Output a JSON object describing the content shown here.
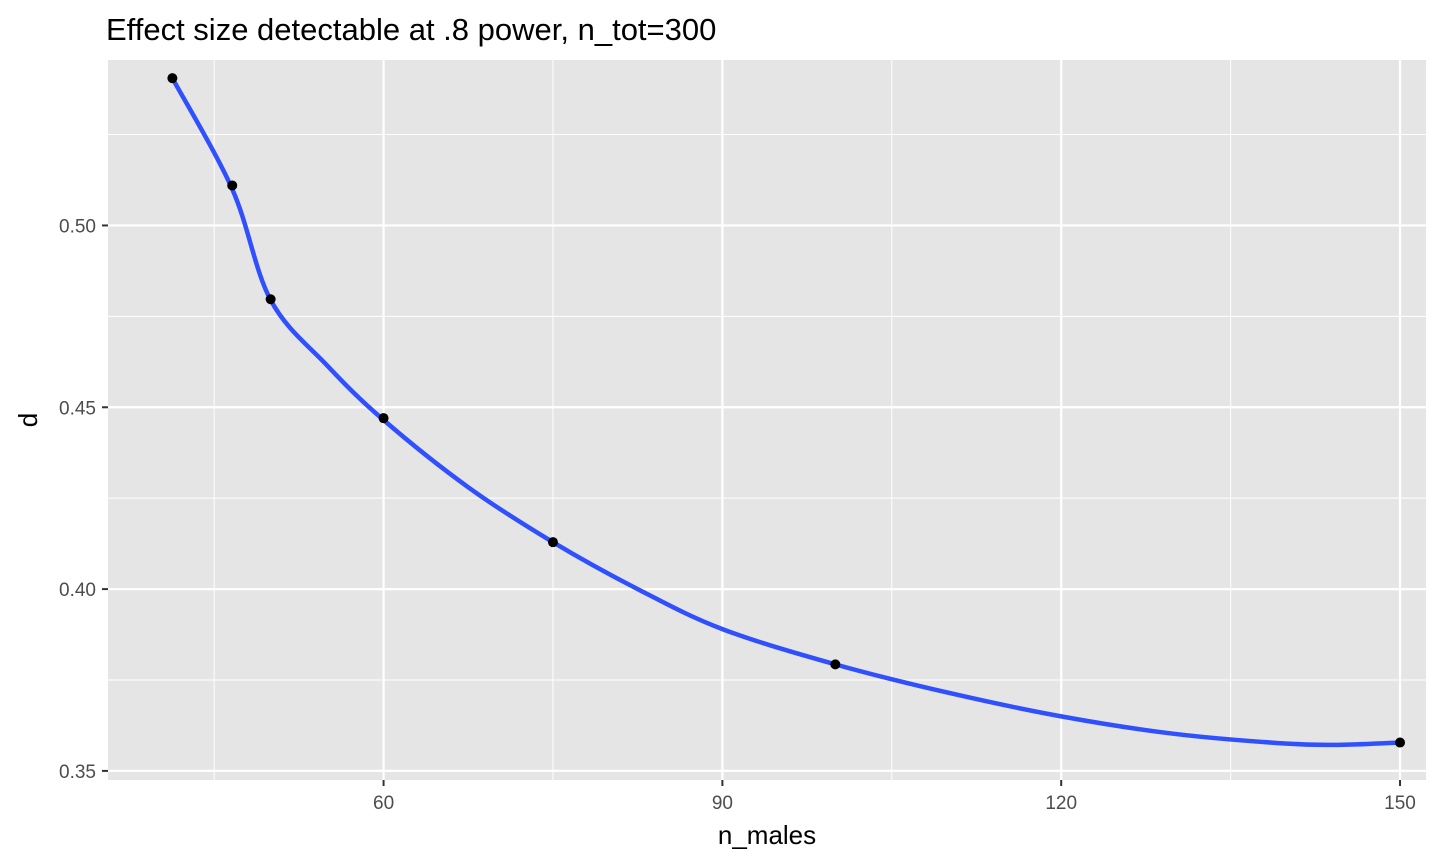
{
  "chart_data": {
    "type": "scatter",
    "title": "Effect size detectable at .8 power, n_tot=300",
    "xlabel": "n_males",
    "ylabel": "d",
    "xlim": [
      35.6,
      152.3
    ],
    "ylim": [
      0.3475,
      0.5455
    ],
    "x_ticks": [
      60,
      90,
      120,
      150
    ],
    "x_tick_labels": [
      "60",
      "90",
      "120",
      "150"
    ],
    "y_ticks": [
      0.35,
      0.4,
      0.45,
      0.5
    ],
    "y_tick_labels": [
      "0.35",
      "0.40",
      "0.45",
      "0.50"
    ],
    "grid": true,
    "panel_background": "#e5e5e5",
    "grid_color": "#ffffff",
    "point_color": "#000000",
    "line_color": "#3150fd",
    "series": [
      {
        "points": [
          {
            "x": 41.3,
            "y": 0.5405
          },
          {
            "x": 46.6,
            "y": 0.511
          },
          {
            "x": 50.0,
            "y": 0.4797
          },
          {
            "x": 60.0,
            "y": 0.447
          },
          {
            "x": 75.0,
            "y": 0.4129
          },
          {
            "x": 100.0,
            "y": 0.3793
          },
          {
            "x": 150.0,
            "y": 0.3578
          }
        ]
      }
    ],
    "smooth_line": [
      {
        "x": 41.3,
        "y": 0.5405
      },
      {
        "x": 46.6,
        "y": 0.51
      },
      {
        "x": 50.0,
        "y": 0.4795
      },
      {
        "x": 55.0,
        "y": 0.4615
      },
      {
        "x": 60.0,
        "y": 0.4465
      },
      {
        "x": 67.5,
        "y": 0.428
      },
      {
        "x": 75.0,
        "y": 0.4129
      },
      {
        "x": 82.5,
        "y": 0.4
      },
      {
        "x": 90.0,
        "y": 0.389
      },
      {
        "x": 100.0,
        "y": 0.3793
      },
      {
        "x": 110.0,
        "y": 0.3715
      },
      {
        "x": 120.0,
        "y": 0.365
      },
      {
        "x": 130.0,
        "y": 0.3602
      },
      {
        "x": 140.0,
        "y": 0.3575
      },
      {
        "x": 145.0,
        "y": 0.3572
      },
      {
        "x": 150.0,
        "y": 0.3578
      }
    ]
  }
}
